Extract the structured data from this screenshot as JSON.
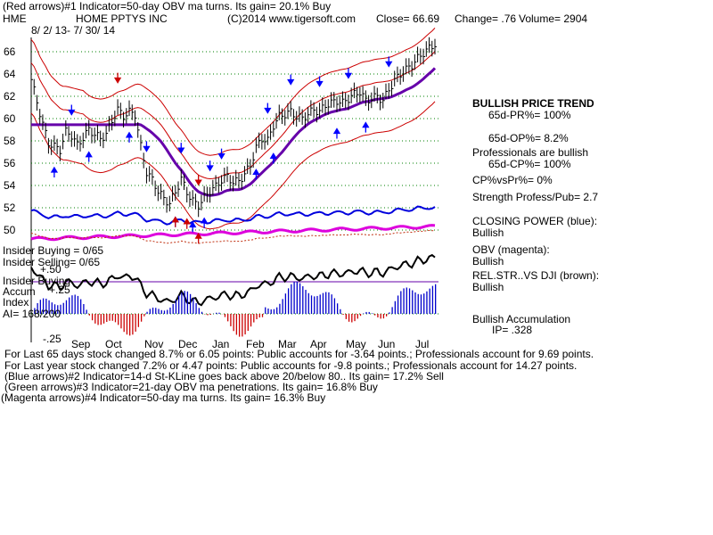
{
  "header": {
    "line1": "(Red arrows)#1 Indicator=50-day OBV ma turns.  Its gain= 20.1% Buy",
    "symbol": "HME",
    "company": "HOME PPTYS INC",
    "copyright": "(C)2014 www.tigersoft.com",
    "close_label": "Close=  66.69",
    "change_label": "Change= .76",
    "volume_label": "Volume= 2904",
    "date_range": "8/ 2/ 13-  7/ 30/ 14"
  },
  "chart_data": {
    "type": "line",
    "y_ticks": [
      50,
      52,
      54,
      56,
      58,
      60,
      62,
      64,
      66
    ],
    "ylim": [
      48.6,
      67.9
    ],
    "x_labels": [
      "Sep",
      "Oct",
      "Nov",
      "Dec",
      "Jan",
      "Feb",
      "Mar",
      "Apr",
      "May",
      "Jun",
      "Jul"
    ],
    "close": [
      [
        0,
        63.5
      ],
      [
        2,
        61.5
      ],
      [
        4,
        59.5
      ],
      [
        6,
        57.8
      ],
      [
        8,
        57.5
      ],
      [
        10,
        57.2
      ],
      [
        12,
        58.8
      ],
      [
        14,
        58.5
      ],
      [
        16,
        57.6
      ],
      [
        18,
        58.3
      ],
      [
        20,
        59.0
      ],
      [
        22,
        58.6
      ],
      [
        24,
        58.2
      ],
      [
        26,
        58.6
      ],
      [
        28,
        59.8
      ],
      [
        30,
        60.8
      ],
      [
        32,
        60.2
      ],
      [
        34,
        60.6
      ],
      [
        36,
        60.4
      ],
      [
        38,
        57.5
      ],
      [
        40,
        55.2
      ],
      [
        42,
        54.5
      ],
      [
        44,
        53.5
      ],
      [
        46,
        52.8
      ],
      [
        48,
        52.4
      ],
      [
        50,
        53.4
      ],
      [
        52,
        54.6
      ],
      [
        54,
        53.4
      ],
      [
        56,
        52.6
      ],
      [
        58,
        52.2
      ],
      [
        60,
        52.9
      ],
      [
        62,
        53.5
      ],
      [
        64,
        53.9
      ],
      [
        66,
        54.5
      ],
      [
        68,
        54.8
      ],
      [
        70,
        54.3
      ],
      [
        72,
        54.4
      ],
      [
        74,
        55.0
      ],
      [
        76,
        55.8
      ],
      [
        78,
        57.4
      ],
      [
        80,
        58.2
      ],
      [
        82,
        58.0
      ],
      [
        84,
        59.4
      ],
      [
        86,
        60.2
      ],
      [
        88,
        60.4
      ],
      [
        90,
        60.6
      ],
      [
        92,
        60.2
      ],
      [
        94,
        60.0
      ],
      [
        96,
        60.4
      ],
      [
        98,
        60.8
      ],
      [
        100,
        60.6
      ],
      [
        102,
        61.2
      ],
      [
        104,
        61.4
      ],
      [
        106,
        61.6
      ],
      [
        108,
        61.4
      ],
      [
        110,
        61.8
      ],
      [
        112,
        62.2
      ],
      [
        114,
        62.4
      ],
      [
        116,
        61.6
      ],
      [
        118,
        61.8
      ],
      [
        120,
        62.0
      ],
      [
        122,
        61.6
      ],
      [
        124,
        62.6
      ],
      [
        126,
        63.4
      ],
      [
        128,
        64.0
      ],
      [
        130,
        64.4
      ],
      [
        132,
        64.8
      ],
      [
        134,
        65.4
      ],
      [
        136,
        65.9
      ],
      [
        138,
        66.3
      ],
      [
        140,
        66.69
      ]
    ],
    "series": [
      {
        "name": "CLOSING POWER (blue)",
        "color": "#0000dd"
      },
      {
        "name": "OBV (magenta)",
        "color": "#dd00dd"
      },
      {
        "name": "REL.STR..VS DJI (brown)",
        "color": "#c03010"
      },
      {
        "name": "Accum Index",
        "color": "#0000cc"
      }
    ],
    "overlay_labels": {
      "insider_buying": "Insider Buying = 0/65",
      "insider_selling": "Insider Selling= 0/65",
      "insider_buying2": "Insider Buying",
      "accum": "Accum",
      "index": "Index",
      "ai": "AI= 168/200",
      "plus50": "+.50",
      "plus25": "+.25",
      "minus25": "-.25"
    }
  },
  "right_panel": {
    "trend": "BULLISH PRICE TREND",
    "pr": "65d-PR%= 100%",
    "op": "65d-OP%= 8.2%",
    "pros": "Professionals are bullish",
    "cp": "65d-CP%= 100%",
    "cpvs": "CP%vsPr%=  0%",
    "strength": "Strength Profess/Pub= 2.7",
    "closing_power_label": "CLOSING POWER (blue):",
    "closing_power_value": "Bullish",
    "obv_label": "OBV (magenta):",
    "obv_value": "Bullish",
    "relstr_label": "REL.STR..VS DJI (brown):",
    "relstr_value": "Bullish",
    "accum_label": "Bullish Accumulation",
    "ip": "IP=  .328"
  },
  "footer": {
    "l1": "For Last 65 days stock changed  8.7% or  6.05 points:  Public accounts for -3.64 points.;  Professionals account for  9.69 points.",
    "l2": "For Last year stock changed  7.2% or  4.47 points:  Public accounts for -9.8 points.;  Professionals account for  14.27 points.",
    "l3": "(Blue arrows)#2 Indicator=14-d St-KLine goes back above 20/below 80.. Its gain= 17.2% Sell",
    "l4": "(Green arrows)#3 Indicator=21-day OBV ma penetrations. Its gain= 16.8% Buy",
    "l5": "(Magenta arrows)#4 Indicator=50-day ma turns. Its gain= 16.3% Buy"
  },
  "colors": {
    "price": "#000000",
    "bands": "#cc0000",
    "ma": "#6600aa",
    "closing_power": "#0000dd",
    "obv": "#dd00dd",
    "relstr": "#c03010",
    "accum_pos": "#0000cc",
    "accum_neg": "#cc0000",
    "grid": "#008000",
    "arrow_up": "#0000ff",
    "arrow_down_red": "#cc0000"
  }
}
